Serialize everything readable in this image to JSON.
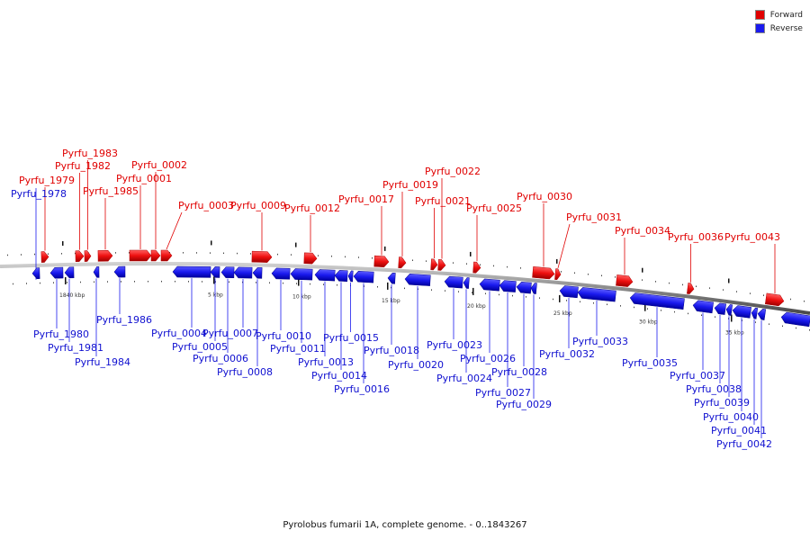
{
  "legend": {
    "forward_label": "Forward",
    "reverse_label": "Reverse",
    "forward_color": "#e00000",
    "reverse_color": "#1a1aee"
  },
  "caption": "Pyrolobus fumarii 1A, complete genome. - 0..1843267",
  "scale_labels": [
    "1840 kbp",
    "5 kbp",
    "10 kbp",
    "15 kbp",
    "20 kbp",
    "25 kbp",
    "30 kbp",
    "35 kbp"
  ],
  "genes": [
    {
      "name": "Pyrfu_1978",
      "strand": "reverse"
    },
    {
      "name": "Pyrfu_1979",
      "strand": "forward"
    },
    {
      "name": "Pyrfu_1980",
      "strand": "reverse"
    },
    {
      "name": "Pyrfu_1981",
      "strand": "reverse"
    },
    {
      "name": "Pyrfu_1982",
      "strand": "forward"
    },
    {
      "name": "Pyrfu_1983",
      "strand": "forward"
    },
    {
      "name": "Pyrfu_1984",
      "strand": "reverse"
    },
    {
      "name": "Pyrfu_1985",
      "strand": "forward"
    },
    {
      "name": "Pyrfu_1986",
      "strand": "reverse"
    },
    {
      "name": "Pyrfu_0001",
      "strand": "forward"
    },
    {
      "name": "Pyrfu_0002",
      "strand": "forward"
    },
    {
      "name": "Pyrfu_0003",
      "strand": "forward"
    },
    {
      "name": "Pyrfu_0004",
      "strand": "reverse"
    },
    {
      "name": "Pyrfu_0005",
      "strand": "reverse"
    },
    {
      "name": "Pyrfu_0006",
      "strand": "reverse"
    },
    {
      "name": "Pyrfu_0007",
      "strand": "reverse"
    },
    {
      "name": "Pyrfu_0008",
      "strand": "reverse"
    },
    {
      "name": "Pyrfu_0009",
      "strand": "forward"
    },
    {
      "name": "Pyrfu_0010",
      "strand": "reverse"
    },
    {
      "name": "Pyrfu_0011",
      "strand": "reverse"
    },
    {
      "name": "Pyrfu_0012",
      "strand": "forward"
    },
    {
      "name": "Pyrfu_0013",
      "strand": "reverse"
    },
    {
      "name": "Pyrfu_0014",
      "strand": "reverse"
    },
    {
      "name": "Pyrfu_0015",
      "strand": "reverse"
    },
    {
      "name": "Pyrfu_0016",
      "strand": "reverse"
    },
    {
      "name": "Pyrfu_0017",
      "strand": "forward"
    },
    {
      "name": "Pyrfu_0018",
      "strand": "reverse"
    },
    {
      "name": "Pyrfu_0019",
      "strand": "forward"
    },
    {
      "name": "Pyrfu_0020",
      "strand": "reverse"
    },
    {
      "name": "Pyrfu_0021",
      "strand": "forward"
    },
    {
      "name": "Pyrfu_0022",
      "strand": "forward"
    },
    {
      "name": "Pyrfu_0023",
      "strand": "reverse"
    },
    {
      "name": "Pyrfu_0024",
      "strand": "reverse"
    },
    {
      "name": "Pyrfu_0025",
      "strand": "forward"
    },
    {
      "name": "Pyrfu_0026",
      "strand": "reverse"
    },
    {
      "name": "Pyrfu_0027",
      "strand": "reverse"
    },
    {
      "name": "Pyrfu_0028",
      "strand": "reverse"
    },
    {
      "name": "Pyrfu_0029",
      "strand": "reverse"
    },
    {
      "name": "Pyrfu_0030",
      "strand": "forward"
    },
    {
      "name": "Pyrfu_0031",
      "strand": "forward"
    },
    {
      "name": "Pyrfu_0032",
      "strand": "reverse"
    },
    {
      "name": "Pyrfu_0033",
      "strand": "reverse"
    },
    {
      "name": "Pyrfu_0034",
      "strand": "forward"
    },
    {
      "name": "Pyrfu_0035",
      "strand": "reverse"
    },
    {
      "name": "Pyrfu_0036",
      "strand": "forward"
    },
    {
      "name": "Pyrfu_0037",
      "strand": "reverse"
    },
    {
      "name": "Pyrfu_0038",
      "strand": "reverse"
    },
    {
      "name": "Pyrfu_0039",
      "strand": "reverse"
    },
    {
      "name": "Pyrfu_0040",
      "strand": "reverse"
    },
    {
      "name": "Pyrfu_0041",
      "strand": "reverse"
    },
    {
      "name": "Pyrfu_0042",
      "strand": "reverse"
    },
    {
      "name": "Pyrfu_0043",
      "strand": "forward"
    }
  ]
}
